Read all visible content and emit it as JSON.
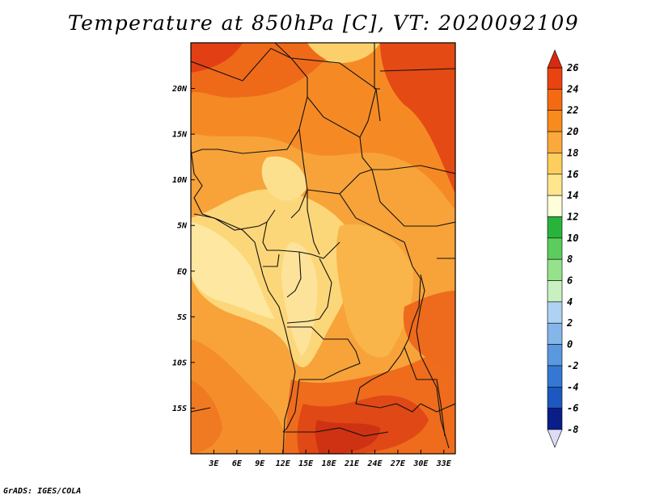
{
  "title": "Temperature at 850hPa [C], VT: 2020092109",
  "credit": "GrADS: IGES/COLA",
  "map": {
    "lon_range": [
      0,
      34.5
    ],
    "lat_range": [
      -20,
      25
    ],
    "x_ticks": [
      "3E",
      "6E",
      "9E",
      "12E",
      "15E",
      "18E",
      "21E",
      "24E",
      "27E",
      "30E",
      "33E"
    ],
    "y_ticks": [
      "20N",
      "15N",
      "10N",
      "5N",
      "EQ",
      "5S",
      "10S",
      "15S"
    ]
  },
  "colorbar": {
    "labels": [
      "26",
      "24",
      "22",
      "20",
      "18",
      "16",
      "14",
      "12",
      "10",
      "8",
      "6",
      "4",
      "2",
      "0",
      "-2",
      "-4",
      "-6",
      "-8"
    ],
    "colors": [
      "#fefed8",
      "#fde68c",
      "#fcce5e",
      "#fba93a",
      "#f88a1e",
      "#f46a12",
      "#e94312",
      "#d12412",
      "#b41212",
      "#28b43c",
      "#5ccc5c",
      "#96e18c",
      "#c8f0c0",
      "#d4ecf8",
      "#aed2f2",
      "#84b6ea",
      "#5a98e0",
      "#3478d4",
      "#1c58c0",
      "#0c3aa4",
      "#0a1e88",
      "#08085e",
      "#dcdcf4"
    ],
    "top_color": "#d92a10",
    "bottom_color": "#dcdcf4"
  }
}
